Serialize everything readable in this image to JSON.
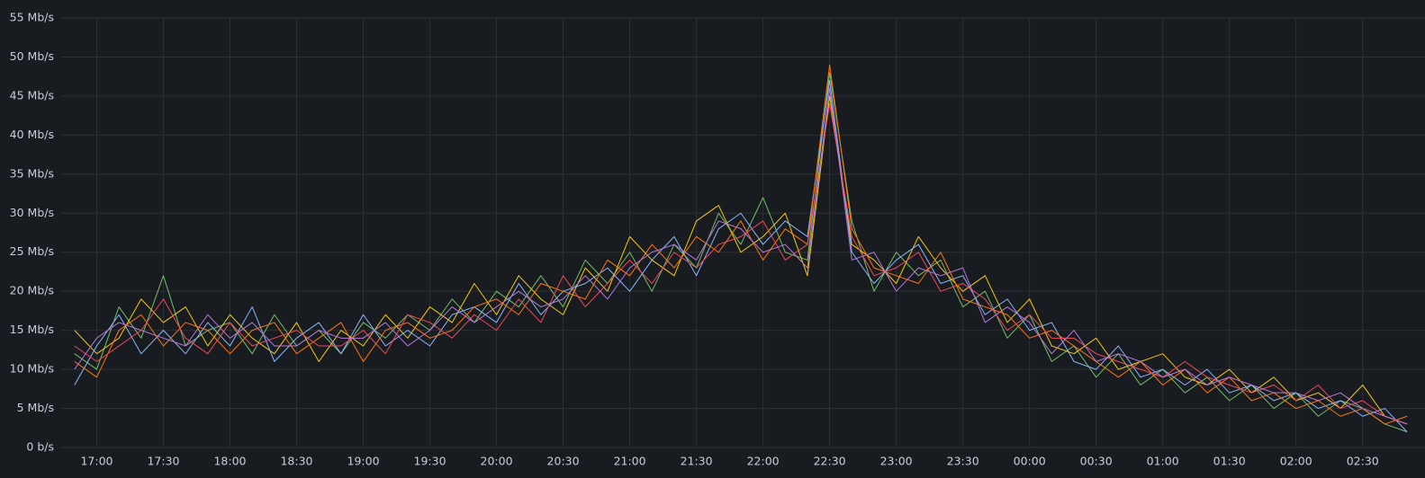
{
  "chart_data": {
    "type": "line",
    "x": [
      "16:50",
      "17:00",
      "17:10",
      "17:20",
      "17:30",
      "17:40",
      "17:50",
      "18:00",
      "18:10",
      "18:20",
      "18:30",
      "18:40",
      "18:50",
      "19:00",
      "19:10",
      "19:20",
      "19:30",
      "19:40",
      "19:50",
      "20:00",
      "20:10",
      "20:20",
      "20:30",
      "20:40",
      "20:50",
      "21:00",
      "21:10",
      "21:20",
      "21:30",
      "21:40",
      "21:50",
      "22:00",
      "22:10",
      "22:20",
      "22:30",
      "22:40",
      "22:50",
      "23:00",
      "23:10",
      "23:20",
      "23:30",
      "23:40",
      "23:50",
      "00:00",
      "00:10",
      "00:20",
      "00:30",
      "00:40",
      "00:50",
      "01:00",
      "01:10",
      "01:20",
      "01:30",
      "01:40",
      "01:50",
      "02:00",
      "02:10",
      "02:20",
      "02:30",
      "02:40",
      "02:50"
    ],
    "xlim": [
      "16:44",
      "02:52"
    ],
    "xticks": [
      "17:00",
      "17:30",
      "18:00",
      "18:30",
      "19:00",
      "19:30",
      "20:00",
      "20:30",
      "21:00",
      "21:30",
      "22:00",
      "22:30",
      "23:00",
      "23:30",
      "00:00",
      "00:30",
      "01:00",
      "01:30",
      "02:00",
      "02:30"
    ],
    "ylim": [
      0,
      55
    ],
    "yticks": [
      {
        "value": 0,
        "label": "0 b/s"
      },
      {
        "value": 5,
        "label": "5 Mb/s"
      },
      {
        "value": 10,
        "label": "10 Mb/s"
      },
      {
        "value": 15,
        "label": "15 Mb/s"
      },
      {
        "value": 20,
        "label": "20 Mb/s"
      },
      {
        "value": 25,
        "label": "25 Mb/s"
      },
      {
        "value": 30,
        "label": "30 Mb/s"
      },
      {
        "value": 35,
        "label": "35 Mb/s"
      },
      {
        "value": 40,
        "label": "40 Mb/s"
      },
      {
        "value": 45,
        "label": "45 Mb/s"
      },
      {
        "value": 50,
        "label": "50 Mb/s"
      },
      {
        "value": 55,
        "label": "55 Mb/s"
      }
    ],
    "grid": true,
    "series": [
      {
        "color": "#73bf69",
        "values": [
          12,
          10,
          18,
          14,
          22,
          13,
          15,
          16,
          12,
          17,
          13,
          15,
          12,
          16,
          14,
          17,
          15,
          19,
          16,
          20,
          18,
          22,
          18,
          24,
          21,
          25,
          20,
          26,
          23,
          30,
          26,
          32,
          25,
          24,
          48,
          29,
          20,
          25,
          22,
          24,
          18,
          20,
          14,
          17,
          11,
          13,
          9,
          12,
          8,
          10,
          7,
          9,
          6,
          8,
          5,
          7,
          4,
          6,
          5,
          3,
          2
        ]
      },
      {
        "color": "#f2cc0c",
        "values": [
          15,
          12,
          14,
          19,
          16,
          18,
          13,
          17,
          14,
          12,
          16,
          11,
          15,
          13,
          17,
          14,
          18,
          16,
          21,
          17,
          22,
          19,
          17,
          23,
          20,
          27,
          24,
          22,
          29,
          31,
          25,
          27,
          30,
          22,
          45,
          26,
          24,
          21,
          27,
          23,
          20,
          22,
          16,
          19,
          13,
          12,
          14,
          10,
          11,
          12,
          9,
          8,
          10,
          7,
          9,
          6,
          7,
          5,
          8,
          4,
          3
        ]
      },
      {
        "color": "#8ab8ff",
        "values": [
          8,
          13,
          17,
          12,
          15,
          12,
          16,
          13,
          18,
          11,
          14,
          16,
          12,
          17,
          13,
          15,
          13,
          17,
          18,
          16,
          21,
          17,
          20,
          21,
          23,
          20,
          24,
          27,
          22,
          28,
          30,
          26,
          29,
          27,
          47,
          25,
          21,
          24,
          26,
          21,
          22,
          17,
          19,
          15,
          16,
          11,
          10,
          13,
          9,
          10,
          8,
          10,
          7,
          8,
          6,
          7,
          5,
          6,
          4,
          5,
          2
        ]
      },
      {
        "color": "#ff780a",
        "values": [
          11,
          9,
          15,
          17,
          13,
          16,
          15,
          12,
          15,
          16,
          12,
          14,
          16,
          11,
          15,
          16,
          14,
          15,
          18,
          19,
          17,
          21,
          20,
          19,
          24,
          22,
          26,
          23,
          27,
          25,
          29,
          24,
          28,
          26,
          49,
          28,
          23,
          22,
          21,
          25,
          19,
          18,
          17,
          14,
          15,
          13,
          11,
          9,
          11,
          8,
          10,
          7,
          9,
          6,
          7,
          5,
          6,
          4,
          5,
          3,
          4
        ]
      },
      {
        "color": "#f2495c",
        "values": [
          13,
          11,
          13,
          15,
          19,
          14,
          12,
          16,
          13,
          14,
          15,
          13,
          13,
          15,
          12,
          17,
          16,
          14,
          17,
          15,
          19,
          16,
          22,
          18,
          21,
          24,
          21,
          25,
          23,
          26,
          27,
          29,
          24,
          26,
          44,
          27,
          22,
          23,
          25,
          20,
          21,
          19,
          15,
          17,
          14,
          14,
          12,
          11,
          10,
          9,
          11,
          9,
          8,
          7,
          8,
          6,
          8,
          5,
          6,
          4,
          3
        ]
      },
      {
        "color": "#b877d9",
        "values": [
          10,
          14,
          16,
          15,
          14,
          13,
          17,
          14,
          16,
          13,
          13,
          15,
          14,
          14,
          16,
          13,
          15,
          18,
          16,
          18,
          20,
          18,
          19,
          22,
          19,
          23,
          25,
          26,
          24,
          29,
          28,
          25,
          26,
          23,
          46,
          24,
          25,
          20,
          23,
          22,
          23,
          16,
          18,
          16,
          12,
          15,
          11,
          12,
          11,
          9,
          10,
          8,
          9,
          8,
          7,
          7,
          6,
          7,
          5,
          4,
          3
        ]
      }
    ]
  }
}
